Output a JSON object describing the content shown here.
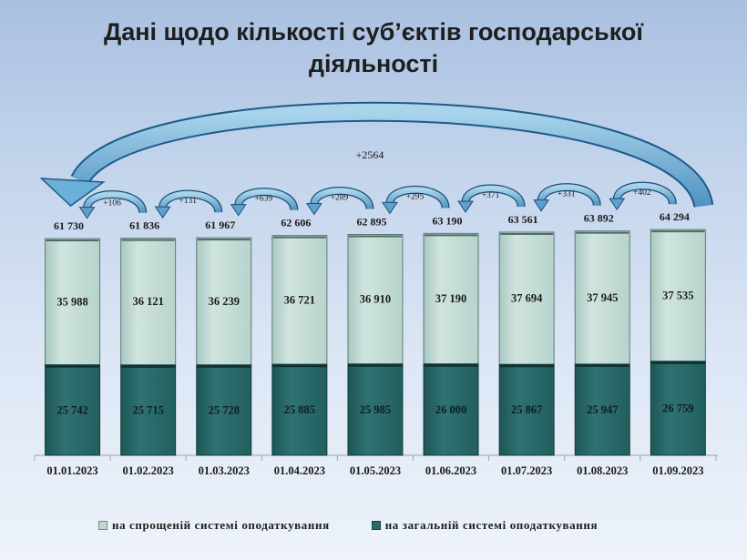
{
  "title_line1": "Дані щодо кількості  суб’єктів господарської",
  "title_line2": "діяльності",
  "overall_increase": "+2564",
  "increments": [
    "+106",
    "+131",
    "+639",
    "+289",
    "+295",
    "+371",
    "+331",
    "+402"
  ],
  "colors": {
    "simplified": "#c0d8d2",
    "general": "#2a6a6a",
    "arrow": "#6aa8cc"
  },
  "legend": {
    "simplified_label": "на спрощеній системі оподаткування",
    "general_label": "на загальній системі оподаткування"
  },
  "chart_data": {
    "type": "bar",
    "stacked": true,
    "categories": [
      "01.01.2023",
      "01.02.2023",
      "01.03.2023",
      "01.04.2023",
      "01.05.2023",
      "01.06.2023",
      "01.07.2023",
      "01.08.2023",
      "01.09.2023"
    ],
    "totals": [
      "61 730",
      "61 836",
      "61 967",
      "62 606",
      "62 895",
      "63 190",
      "63 561",
      "63 892",
      "64 294"
    ],
    "series": [
      {
        "name": "на загальній системі оподаткування",
        "key": "general",
        "values": [
          25742,
          25715,
          25728,
          25885,
          25985,
          26000,
          25867,
          25947,
          26759
        ],
        "labels": [
          "25 742",
          "25 715",
          "25 728",
          "25 885",
          "25 985",
          "26 000",
          "25 867",
          "25 947",
          "26 759"
        ]
      },
      {
        "name": "на спрощеній системі оподаткування",
        "key": "simplified",
        "values": [
          35988,
          36121,
          36239,
          36721,
          36910,
          37190,
          37694,
          37945,
          37535
        ],
        "labels": [
          "35 988",
          "36 121",
          "36 239",
          "36 721",
          "36 910",
          "37 190",
          "37 694",
          "37 945",
          "37 535"
        ]
      }
    ],
    "legend_position": "bottom",
    "grid": false
  }
}
